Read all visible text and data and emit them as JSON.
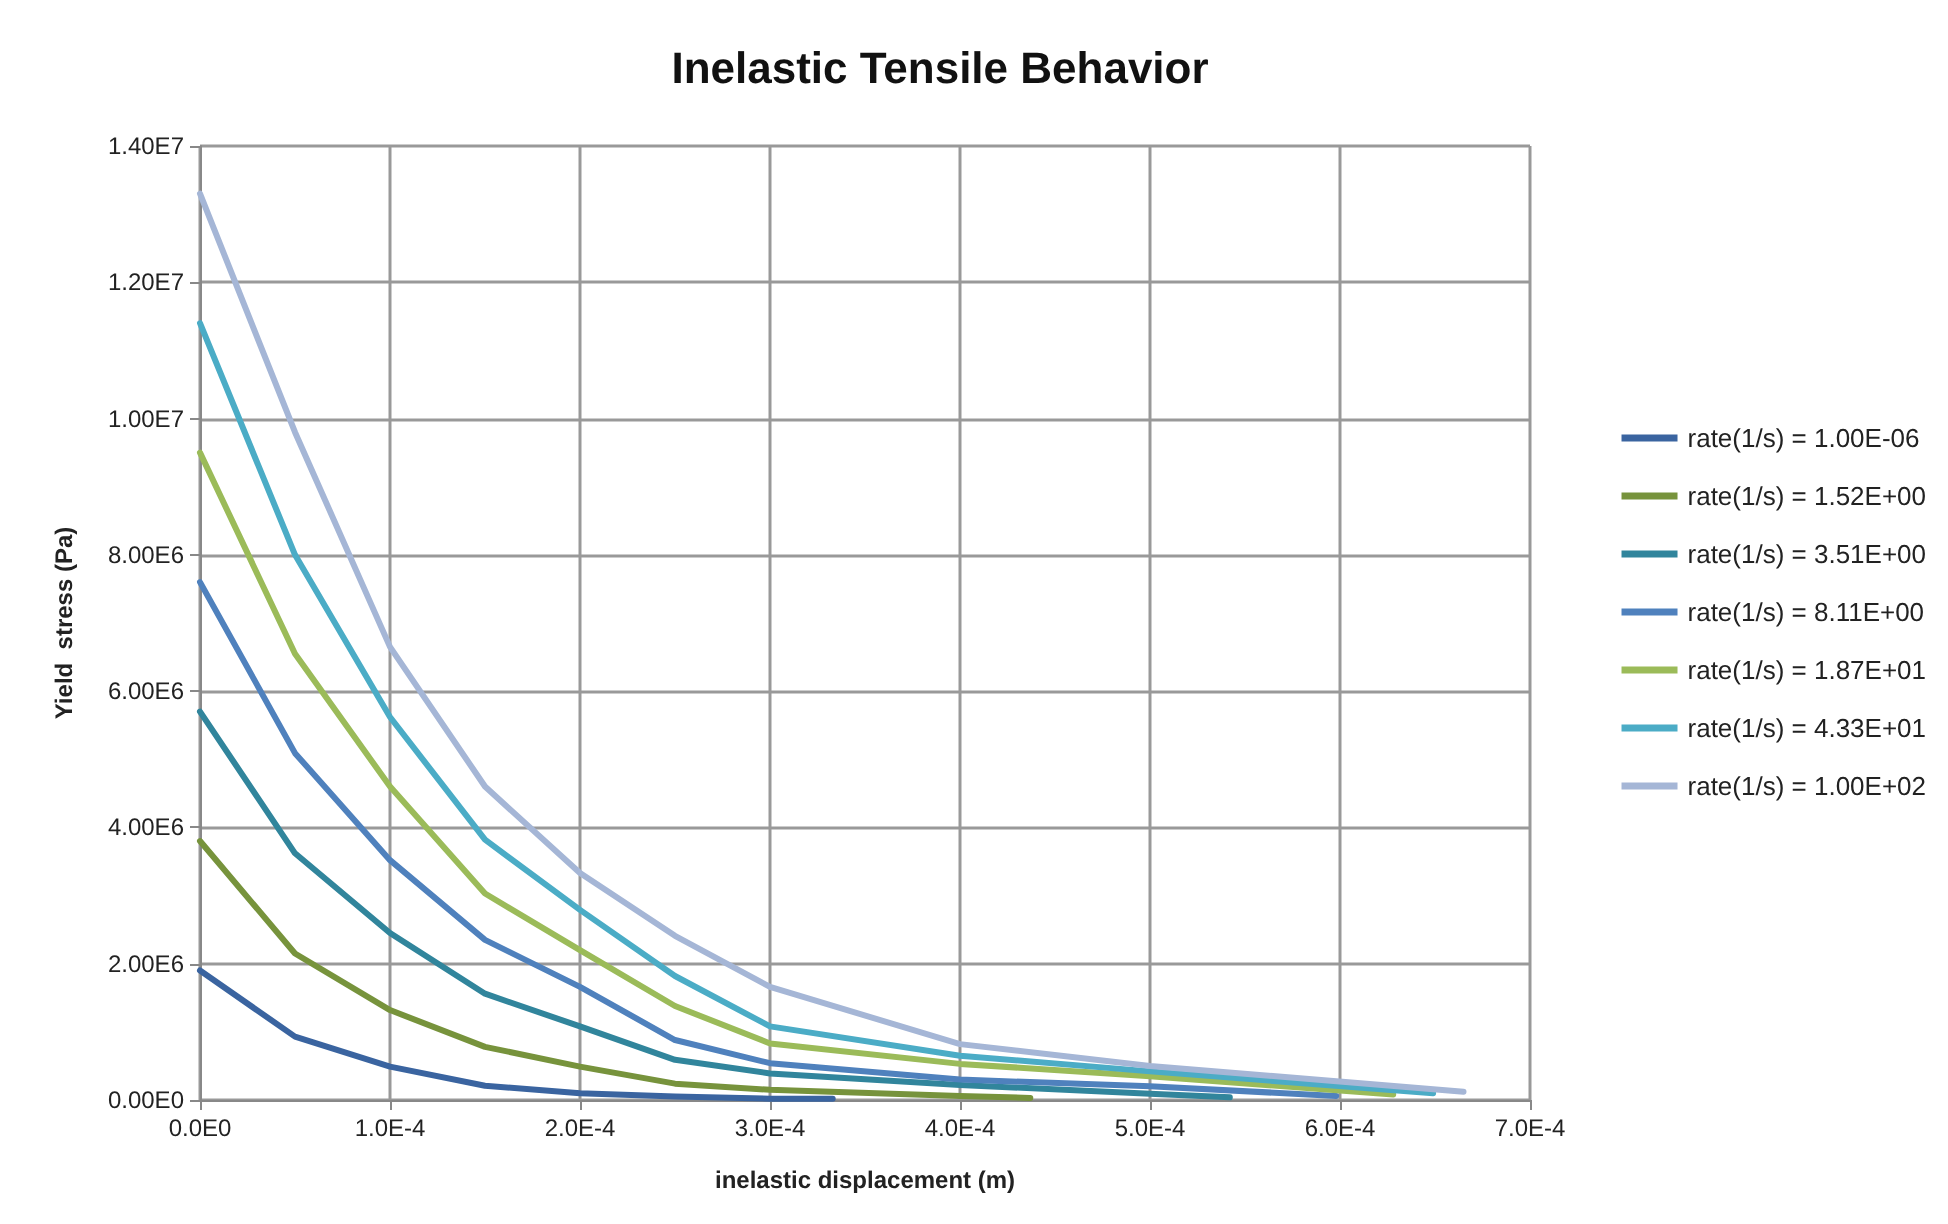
{
  "chart_data": {
    "type": "line",
    "title": "Inelastic Tensile Behavior",
    "xlabel": "inelastic displacement (m)",
    "ylabel": "Yield  stress (Pa)",
    "xlim": [
      0,
      0.0007
    ],
    "ylim": [
      0,
      14000000
    ],
    "xticks": [
      {
        "value": 0,
        "label": "0.0E0"
      },
      {
        "value": 0.0001,
        "label": "1.0E-4"
      },
      {
        "value": 0.0002,
        "label": "2.0E-4"
      },
      {
        "value": 0.0003,
        "label": "3.0E-4"
      },
      {
        "value": 0.0004,
        "label": "4.0E-4"
      },
      {
        "value": 0.0005,
        "label": "5.0E-4"
      },
      {
        "value": 0.0006,
        "label": "6.0E-4"
      },
      {
        "value": 0.0007,
        "label": "7.0E-4"
      }
    ],
    "yticks": [
      {
        "value": 0,
        "label": "0.00E0"
      },
      {
        "value": 2000000,
        "label": "2.00E6"
      },
      {
        "value": 4000000,
        "label": "4.00E6"
      },
      {
        "value": 6000000,
        "label": "6.00E6"
      },
      {
        "value": 8000000,
        "label": "8.00E6"
      },
      {
        "value": 10000000,
        "label": "1.00E7"
      },
      {
        "value": 12000000,
        "label": "1.20E7"
      },
      {
        "value": 14000000,
        "label": "1.40E7"
      }
    ],
    "grid": true,
    "legend": "right",
    "marker": "none",
    "line_style": "solid",
    "series": [
      {
        "name": "rate(1/s) = 1.00E-06",
        "color": "#3a64a0",
        "x": [
          0,
          5e-05,
          0.0001,
          0.00015,
          0.0002,
          0.00025,
          0.0003,
          0.000333
        ],
        "values": [
          1900000,
          930000,
          490000,
          210000,
          100000,
          50000,
          20000,
          20000
        ]
      },
      {
        "name": "rate(1/s) = 1.52E+00",
        "color": "#77933c",
        "x": [
          0,
          5e-05,
          0.0001,
          0.00015,
          0.0002,
          0.00025,
          0.0003,
          0.0004,
          0.000437
        ],
        "values": [
          3800000,
          2150000,
          1320000,
          780000,
          490000,
          240000,
          150000,
          60000,
          30000
        ]
      },
      {
        "name": "rate(1/s) = 3.51E+00",
        "color": "#31859c",
        "x": [
          0,
          5e-05,
          0.0001,
          0.00015,
          0.0002,
          0.00025,
          0.0003,
          0.0004,
          0.0005,
          0.000542
        ],
        "values": [
          5700000,
          3620000,
          2450000,
          1560000,
          1080000,
          590000,
          390000,
          220000,
          90000,
          40000
        ]
      },
      {
        "name": "rate(1/s) = 8.11E+00",
        "color": "#4f81bd",
        "x": [
          0,
          5e-05,
          0.0001,
          0.00015,
          0.0002,
          0.00025,
          0.0003,
          0.0004,
          0.0005,
          0.000598
        ],
        "values": [
          7600000,
          5090000,
          3520000,
          2350000,
          1660000,
          880000,
          540000,
          300000,
          200000,
          60000
        ]
      },
      {
        "name": "rate(1/s) = 1.87E+01",
        "color": "#9bbb59",
        "x": [
          0,
          5e-05,
          0.0001,
          0.00015,
          0.0002,
          0.00025,
          0.0003,
          0.0004,
          0.0005,
          0.000628
        ],
        "values": [
          9500000,
          6550000,
          4600000,
          3030000,
          2200000,
          1380000,
          830000,
          530000,
          350000,
          80000
        ]
      },
      {
        "name": "rate(1/s) = 4.33E+01",
        "color": "#4bacc6",
        "x": [
          0,
          5e-05,
          0.0001,
          0.00015,
          0.0002,
          0.00025,
          0.0003,
          0.0004,
          0.0005,
          0.000649
        ],
        "values": [
          11400000,
          8000000,
          5620000,
          3820000,
          2790000,
          1820000,
          1080000,
          650000,
          420000,
          100000
        ]
      },
      {
        "name": "rate(1/s) = 1.00E+02",
        "color": "#a5b6d6",
        "x": [
          0,
          5e-05,
          0.0001,
          0.00015,
          0.0002,
          0.00025,
          0.0003,
          0.0004,
          0.0005,
          0.000665
        ],
        "values": [
          13300000,
          9800000,
          6650000,
          4600000,
          3330000,
          2410000,
          1660000,
          820000,
          500000,
          120000
        ]
      }
    ]
  }
}
